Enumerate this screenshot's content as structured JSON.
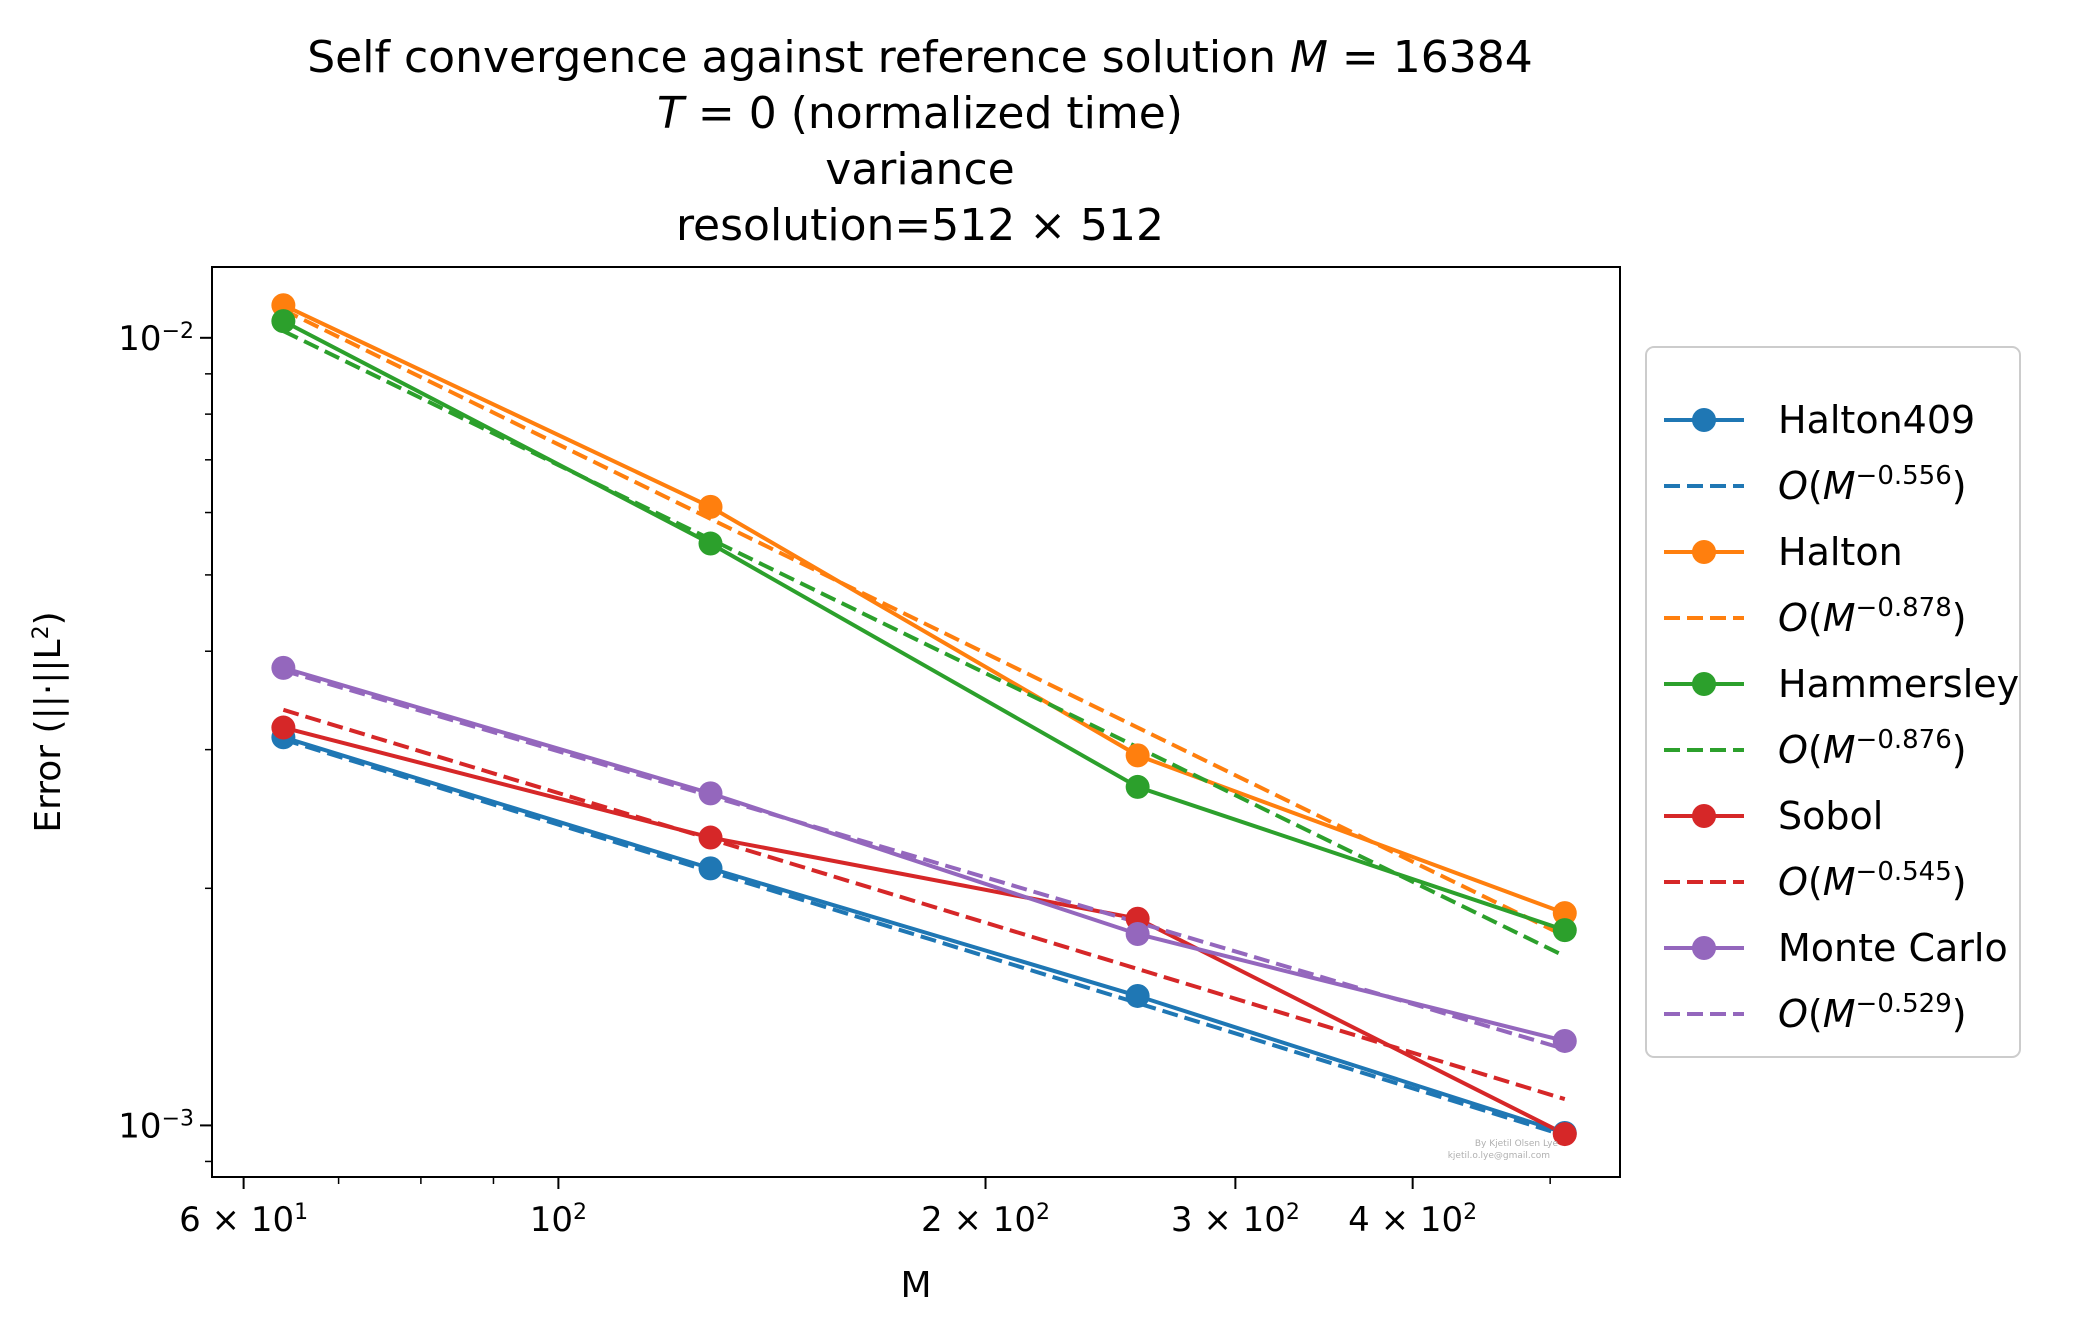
{
  "chart_data": {
    "type": "line",
    "title_lines": [
      "Self convergence against reference solution M = 16384",
      "T = 0 (normalized time)",
      "variance",
      "resolution=512 × 512"
    ],
    "xlabel": "M",
    "ylabel": "Error (||·||L²)",
    "xscale": "log",
    "yscale": "log",
    "xlim": [
      57,
      560
    ],
    "ylim": [
      0.00086,
      0.0123
    ],
    "x_major_ticks": [
      {
        "value": 60,
        "label": "6 × 10¹"
      },
      {
        "value": 100,
        "label": "10²"
      },
      {
        "value": 200,
        "label": "2 × 10²"
      },
      {
        "value": 300,
        "label": "3 × 10²"
      },
      {
        "value": 400,
        "label": "4 × 10²"
      }
    ],
    "y_major_ticks": [
      {
        "value": 0.001,
        "label": "10⁻³"
      },
      {
        "value": 0.01,
        "label": "10⁻²"
      }
    ],
    "x": [
      64,
      128,
      256,
      512
    ],
    "series": [
      {
        "name": "Halton409",
        "color": "#1f77b4",
        "values": [
          0.00311,
          0.00212,
          0.00146,
          0.000978
        ],
        "fit_label": "O(M^−0.556)",
        "fit_exponent": -0.556,
        "fit_values": [
          0.00309,
          0.0021,
          0.00143,
          0.000971
        ]
      },
      {
        "name": "Halton",
        "color": "#ff7f0e",
        "values": [
          0.011,
          0.0061,
          0.00295,
          0.00186
        ],
        "fit_label": "O(M^−0.878)",
        "fit_exponent": -0.878,
        "fit_values": [
          0.01085,
          0.00589,
          0.0032,
          0.00174
        ]
      },
      {
        "name": "Hammersley",
        "color": "#2ca02c",
        "values": [
          0.0105,
          0.00548,
          0.00269,
          0.00177
        ],
        "fit_label": "O(M^−0.876)",
        "fit_exponent": -0.876,
        "fit_values": [
          0.0102,
          0.00555,
          0.00302,
          0.00164
        ]
      },
      {
        "name": "Sobol",
        "color": "#d62728",
        "values": [
          0.0032,
          0.00232,
          0.00183,
          0.000975
        ],
        "fit_label": "O(M^−0.545)",
        "fit_exponent": -0.545,
        "fit_values": [
          0.00337,
          0.00231,
          0.00158,
          0.00108
        ]
      },
      {
        "name": "Monte Carlo",
        "color": "#9467bd",
        "values": [
          0.00381,
          0.00264,
          0.00175,
          0.00128
        ],
        "fit_label": "O(M^−0.529)",
        "fit_exponent": -0.529,
        "fit_values": [
          0.00378,
          0.00262,
          0.00181,
          0.00125
        ]
      }
    ],
    "legend_position": "outside-right",
    "grid": false,
    "watermark_lines": [
      "By Kjetil Olsen Lye",
      "kjetil.o.lye@gmail.com"
    ]
  }
}
